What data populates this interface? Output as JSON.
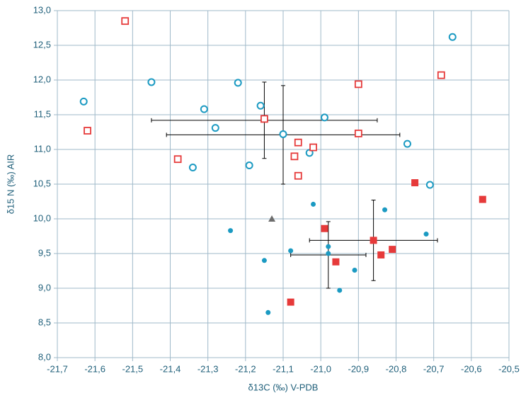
{
  "chart_data": {
    "type": "scatter",
    "x_label": "δ13C (‰) V-PDB",
    "y_label": "δ15 N (‰) AIR",
    "xlim": [
      -21.7,
      -20.5
    ],
    "ylim": [
      8.0,
      13.0
    ],
    "grid": true,
    "xticks": [
      {
        "value": -21.7,
        "label": "-21,7"
      },
      {
        "value": -21.6,
        "label": "-21,6"
      },
      {
        "value": -21.5,
        "label": "-21,5"
      },
      {
        "value": -21.4,
        "label": "-21,4"
      },
      {
        "value": -21.3,
        "label": "-21,3"
      },
      {
        "value": -21.2,
        "label": "-21,2"
      },
      {
        "value": -21.1,
        "label": "-21,1"
      },
      {
        "value": -21.0,
        "label": "-21,0"
      },
      {
        "value": -20.9,
        "label": "-20,9"
      },
      {
        "value": -20.8,
        "label": "-20,8"
      },
      {
        "value": -20.7,
        "label": "-20,7"
      },
      {
        "value": -20.6,
        "label": "-20,6"
      },
      {
        "value": -20.5,
        "label": "-20,5"
      }
    ],
    "yticks": [
      {
        "value": 8.0,
        "label": "8,0"
      },
      {
        "value": 8.5,
        "label": "8,5"
      },
      {
        "value": 9.0,
        "label": "9,0"
      },
      {
        "value": 9.5,
        "label": "9,5"
      },
      {
        "value": 10.0,
        "label": "10,0"
      },
      {
        "value": 10.5,
        "label": "10,5"
      },
      {
        "value": 11.0,
        "label": "11,0"
      },
      {
        "value": 11.5,
        "label": "11,5"
      },
      {
        "value": 12.0,
        "label": "12,0"
      },
      {
        "value": 12.5,
        "label": "12,5"
      },
      {
        "value": 13.0,
        "label": "13,0"
      }
    ],
    "series": [
      {
        "color": "#1b9ac2",
        "marker": "circle-open",
        "x": [
          -21.63,
          -21.45,
          -21.31,
          -21.28,
          -21.22,
          -21.16,
          -21.1,
          -21.19,
          -21.34,
          -21.03,
          -20.99,
          -20.77,
          -20.71,
          -20.65
        ],
        "y": [
          11.69,
          11.97,
          11.58,
          11.31,
          11.96,
          11.63,
          11.22,
          10.77,
          10.74,
          10.95,
          11.46,
          11.08,
          10.49,
          12.62
        ]
      },
      {
        "color": "#e63a3a",
        "marker": "square-open",
        "x": [
          -21.52,
          -21.62,
          -21.38,
          -21.15,
          -21.06,
          -21.07,
          -21.02,
          -21.06,
          -20.9,
          -20.9,
          -20.68
        ],
        "y": [
          12.85,
          11.27,
          10.86,
          11.44,
          11.1,
          10.9,
          11.03,
          10.62,
          11.94,
          11.23,
          12.07
        ]
      },
      {
        "color": "#1b9ac2",
        "marker": "circle",
        "x": [
          -21.24,
          -21.02,
          -21.15,
          -21.14,
          -21.08,
          -20.98,
          -20.98,
          -20.91,
          -20.95,
          -20.83,
          -20.72
        ],
        "y": [
          9.83,
          10.21,
          9.4,
          8.65,
          9.54,
          9.6,
          9.5,
          9.26,
          8.97,
          10.13,
          9.78
        ]
      },
      {
        "color": "#e63a3a",
        "marker": "square",
        "x": [
          -20.99,
          -20.86,
          -20.96,
          -20.84,
          -20.81,
          -20.75,
          -20.57,
          -21.08
        ],
        "y": [
          9.86,
          9.69,
          9.38,
          9.48,
          9.56,
          10.52,
          10.28,
          8.8
        ]
      },
      {
        "color": "#6d6d6d",
        "marker": "triangle",
        "x": [
          -21.13
        ],
        "y": [
          10.0
        ]
      },
      {
        "color": "#000000",
        "marker": "none",
        "x": [
          -21.15,
          -21.1,
          -20.86,
          -20.98
        ],
        "y": [
          11.42,
          11.21,
          9.69,
          9.48
        ],
        "xerr": [
          0.3,
          0.31,
          0.17,
          0.1
        ],
        "yerr": [
          0.55,
          0.71,
          0.58,
          0.48
        ]
      }
    ]
  }
}
